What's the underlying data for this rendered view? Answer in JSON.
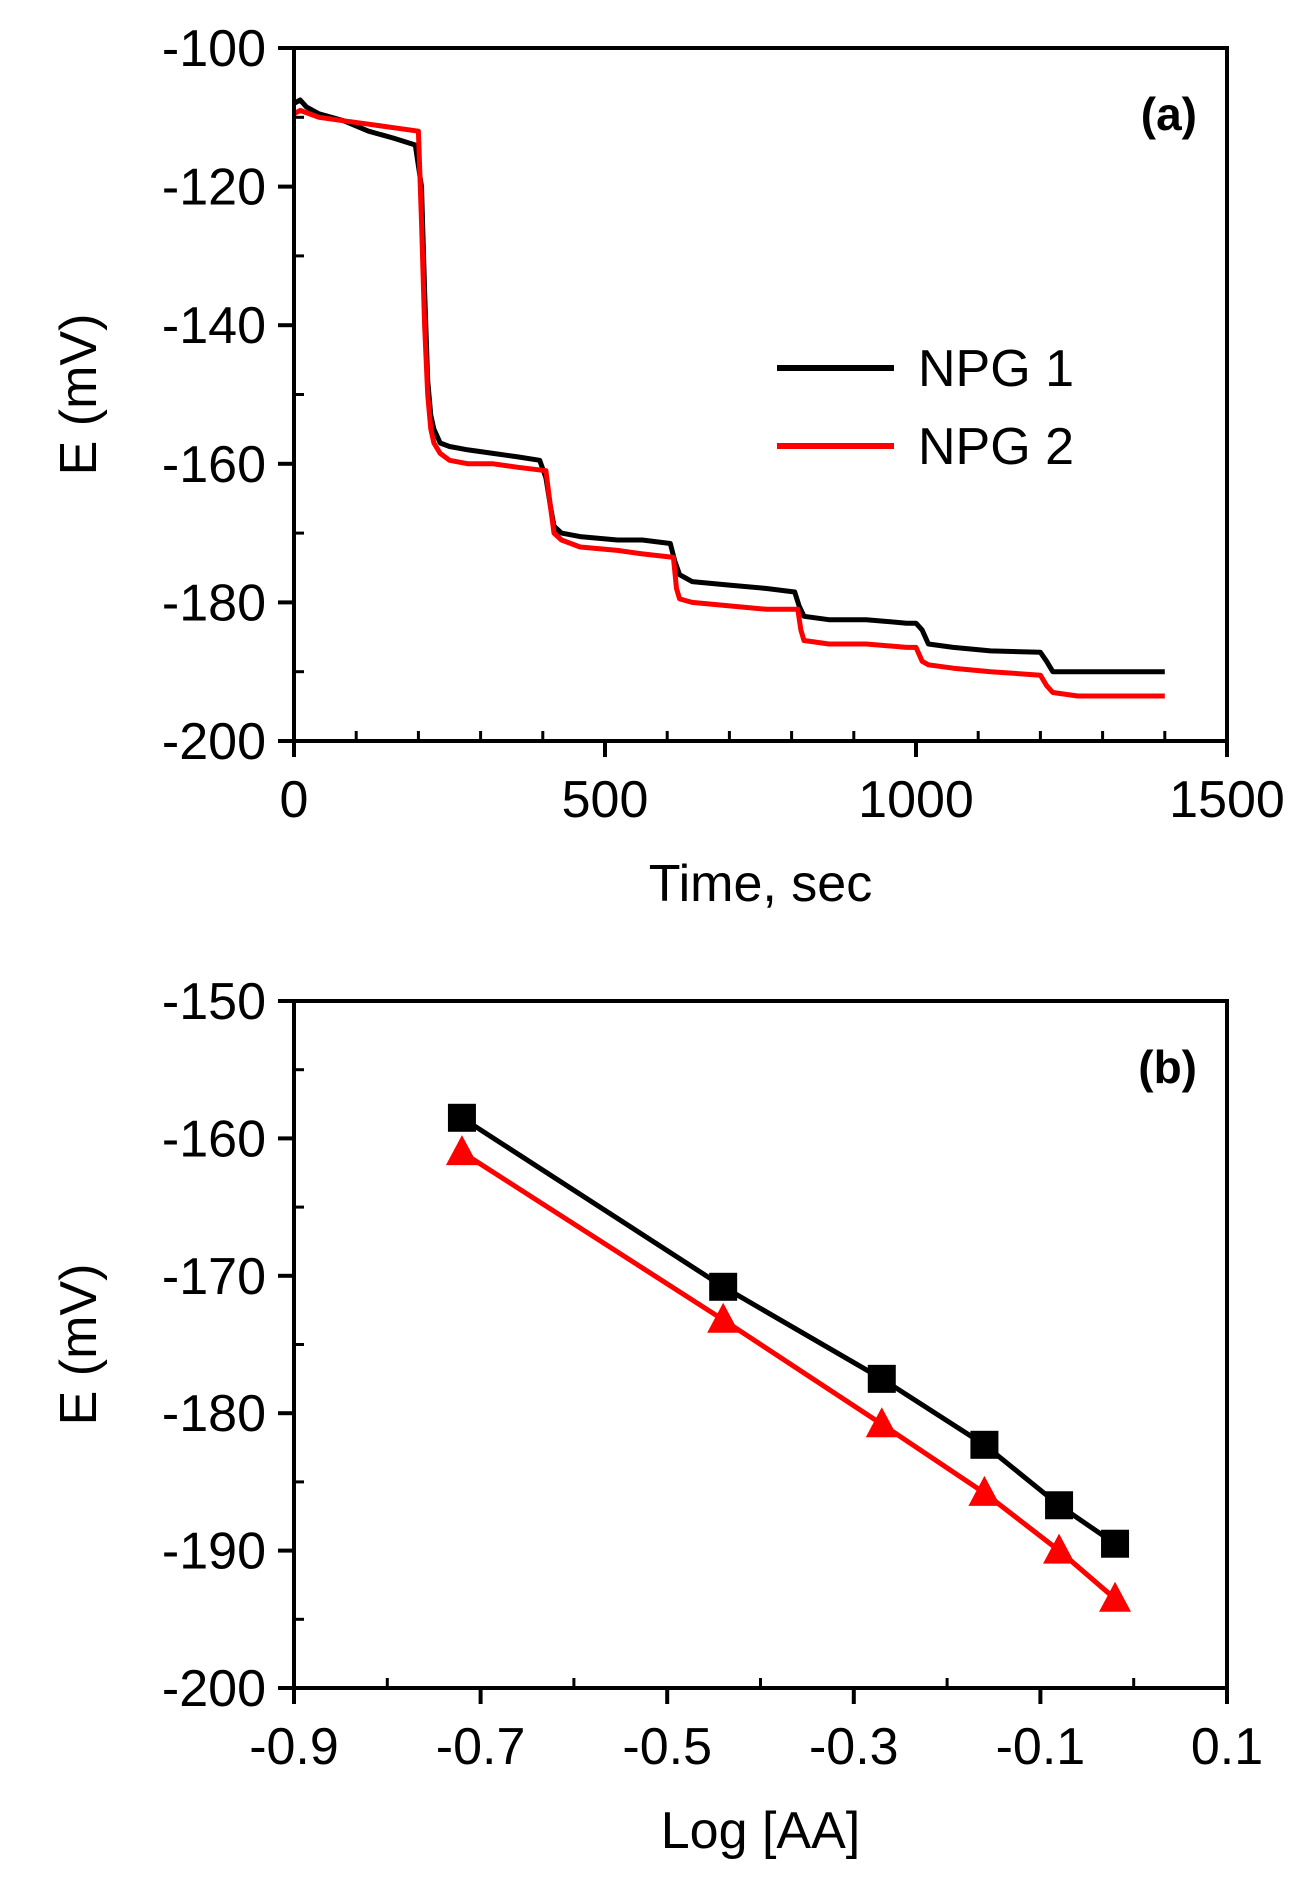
{
  "colors": {
    "series1": "#000000",
    "series2": "#ff0000"
  },
  "chart_data": [
    {
      "type": "line",
      "panel_label": "(a)",
      "xlabel": "Time, sec",
      "ylabel": "E (mV)",
      "xlim": [
        0,
        1500
      ],
      "ylim": [
        -200,
        -100
      ],
      "xticks": [
        0,
        500,
        1000,
        1500
      ],
      "yticks": [
        -100,
        -120,
        -140,
        -160,
        -180,
        -200
      ],
      "legend": {
        "position": "center-right",
        "entries": [
          "NPG 1",
          "NPG 2"
        ]
      },
      "series": [
        {
          "name": "NPG 1",
          "color": "#000000",
          "x": [
            0,
            10,
            20,
            40,
            80,
            120,
            160,
            195,
            205,
            210,
            215,
            220,
            225,
            235,
            250,
            280,
            320,
            360,
            395,
            405,
            412,
            418,
            430,
            460,
            520,
            560,
            605,
            612,
            620,
            640,
            700,
            760,
            805,
            812,
            820,
            860,
            920,
            985,
            1000,
            1010,
            1020,
            1060,
            1120,
            1200,
            1210,
            1220,
            1260,
            1320,
            1400
          ],
          "y": [
            -108,
            -107.5,
            -108.5,
            -109.5,
            -110.5,
            -112,
            -113,
            -114,
            -120,
            -135,
            -148,
            -153,
            -155,
            -157,
            -157.5,
            -158,
            -158.5,
            -159,
            -159.5,
            -162,
            -166,
            -169,
            -170,
            -170.5,
            -171,
            -171,
            -171.5,
            -174,
            -176,
            -177,
            -177.5,
            -178,
            -178.5,
            -180.5,
            -182,
            -182.5,
            -182.5,
            -183,
            -183,
            -184,
            -186,
            -186.5,
            -187,
            -187.2,
            -188.5,
            -190,
            -190,
            -190,
            -190
          ]
        },
        {
          "name": "NPG 2",
          "color": "#ff0000",
          "x": [
            0,
            10,
            40,
            80,
            120,
            160,
            200,
            205,
            210,
            215,
            220,
            225,
            235,
            250,
            280,
            320,
            360,
            405,
            412,
            418,
            430,
            460,
            520,
            560,
            610,
            615,
            620,
            640,
            700,
            760,
            810,
            815,
            820,
            860,
            920,
            985,
            1000,
            1010,
            1020,
            1060,
            1120,
            1200,
            1210,
            1220,
            1260,
            1320,
            1400
          ],
          "y": [
            -109.5,
            -109,
            -110,
            -110.5,
            -111,
            -111.5,
            -112,
            -125,
            -140,
            -150,
            -155,
            -157,
            -158.5,
            -159.5,
            -160,
            -160,
            -160.5,
            -161,
            -166,
            -170,
            -171,
            -172,
            -172.5,
            -173,
            -173.5,
            -178,
            -179.5,
            -180,
            -180.5,
            -181,
            -181,
            -184,
            -185.5,
            -186,
            -186,
            -186.5,
            -186.5,
            -188.5,
            -189,
            -189.5,
            -190,
            -190.5,
            -192,
            -193,
            -193.5,
            -193.5,
            -193.5
          ]
        }
      ]
    },
    {
      "type": "scatter",
      "panel_label": "(b)",
      "xlabel": "Log [AA]",
      "ylabel": "E (mV)",
      "xlim": [
        -0.9,
        0.1
      ],
      "ylim": [
        -200,
        -150
      ],
      "xticks": [
        -0.9,
        -0.7,
        -0.5,
        -0.3,
        -0.1,
        0.1
      ],
      "xtick_labels": [
        "-0.9",
        "-0.7",
        "-0.5",
        "-0.3",
        "-0.1",
        "0.1"
      ],
      "yticks": [
        -150,
        -160,
        -170,
        -180,
        -190,
        -200
      ],
      "series": [
        {
          "name": "NPG 1",
          "marker": "square",
          "color": "#000000",
          "x": [
            -0.72,
            -0.44,
            -0.27,
            -0.16,
            -0.08,
            -0.02
          ],
          "y": [
            -158.5,
            -170.8,
            -177.5,
            -182.3,
            -186.7,
            -189.5
          ]
        },
        {
          "name": "NPG 2",
          "marker": "triangle",
          "color": "#ff0000",
          "x": [
            -0.72,
            -0.44,
            -0.27,
            -0.16,
            -0.08,
            -0.02
          ],
          "y": [
            -161,
            -173.2,
            -180.8,
            -185.8,
            -190,
            -193.5
          ]
        }
      ]
    }
  ]
}
